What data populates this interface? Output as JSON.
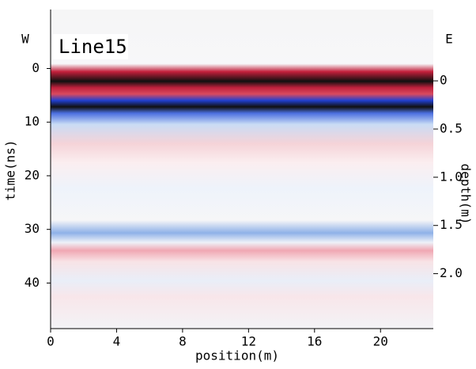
{
  "chart_data": {
    "type": "radargram",
    "title": "Line15",
    "left_label": "W",
    "right_label": "E",
    "xlabel": "position(m)",
    "ylabel": "time(ns)",
    "y2label": "depth(m)",
    "xlim": [
      0,
      23.2
    ],
    "xticks": [
      0,
      4,
      8,
      12,
      16,
      20
    ],
    "ylim": [
      48.5,
      -11
    ],
    "yticks": [
      0,
      10,
      20,
      30,
      40
    ],
    "y2lim": [
      2.57,
      -0.74
    ],
    "y2ticks": [
      0,
      0.5,
      1.0,
      1.5,
      2.0
    ]
  }
}
